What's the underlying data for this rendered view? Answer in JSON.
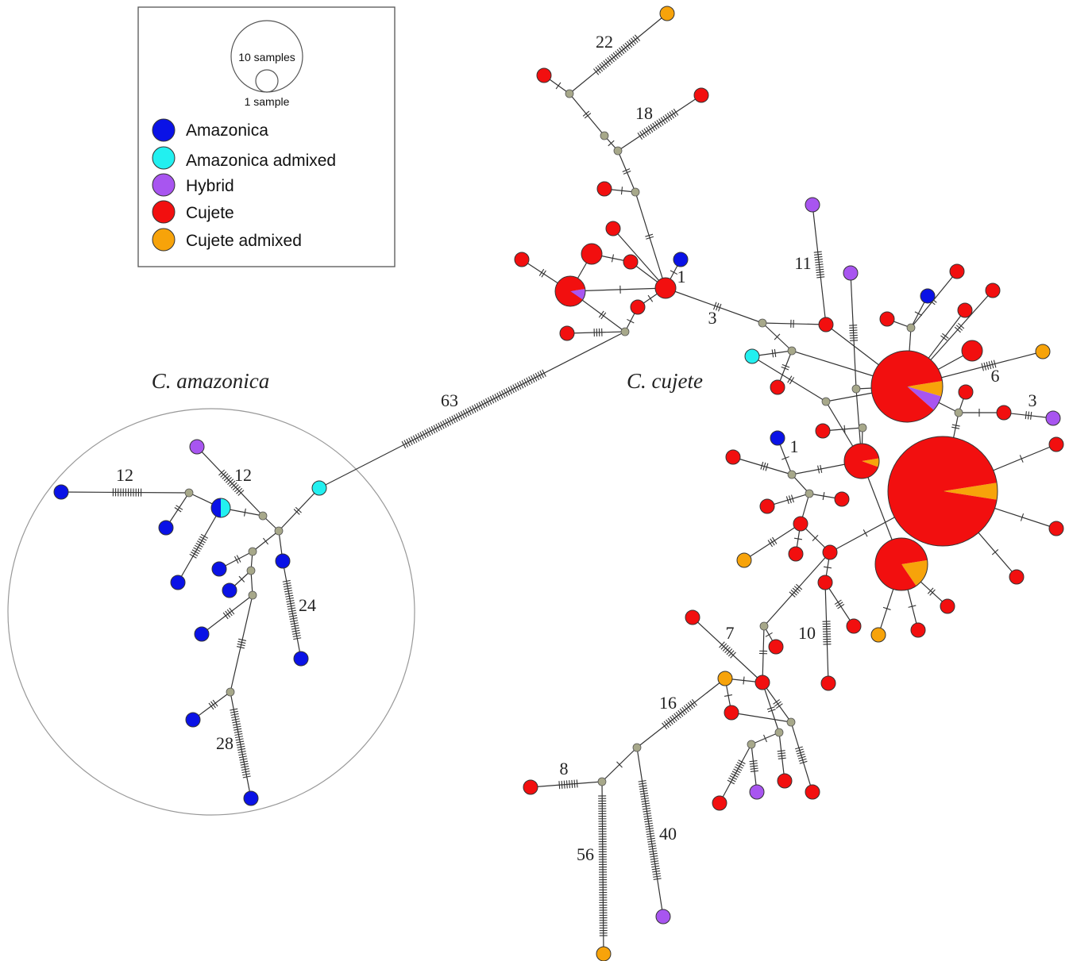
{
  "legend": {
    "size_scale": {
      "large_label": "10 samples",
      "small_label": "1 sample"
    },
    "items": [
      {
        "label": "Amazonica",
        "color": "#0a12e6"
      },
      {
        "label": "Amazonica admixed",
        "color": "#22f0f0"
      },
      {
        "label": "Hybrid",
        "color": "#a855f0"
      },
      {
        "label": "Cujete",
        "color": "#f20f0f"
      },
      {
        "label": "Cujete admixed",
        "color": "#f7a30a"
      }
    ]
  },
  "groups": {
    "amazonica": {
      "label": "C. amazonica"
    },
    "cujete": {
      "label": "C. cujete"
    }
  },
  "colors": {
    "A": "#0a12e6",
    "AA": "#22f0f0",
    "H": "#a855f0",
    "C": "#f20f0f",
    "CA": "#f7a30a",
    "median": "#a7a88a",
    "edge": "#333333"
  },
  "mutation_labels": [
    "22",
    "18",
    "1",
    "3",
    "11",
    "6",
    "3",
    "63",
    "1",
    "12",
    "12",
    "24",
    "28",
    "10",
    "7",
    "16",
    "8",
    "56",
    "40"
  ]
}
